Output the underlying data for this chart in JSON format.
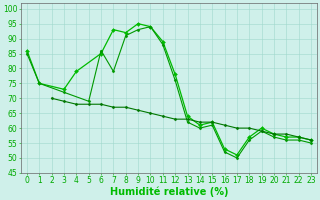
{
  "line1": {
    "x": [
      0,
      1,
      3,
      4,
      6,
      7,
      8,
      9,
      10,
      11,
      12,
      13,
      14,
      15,
      16,
      17,
      18,
      19,
      20,
      21,
      22,
      23
    ],
    "y": [
      86,
      75,
      73,
      79,
      85,
      93,
      92,
      95,
      94,
      89,
      78,
      64,
      61,
      62,
      53,
      51,
      57,
      60,
      58,
      57,
      57,
      56
    ],
    "color": "#00bb00",
    "marker": "D",
    "markersize": 2.0,
    "linewidth": 0.9
  },
  "line2": {
    "x": [
      0,
      1,
      3,
      5,
      6,
      7,
      8,
      9,
      10,
      11,
      12,
      13,
      14,
      15,
      16,
      17,
      18,
      19,
      20,
      21,
      22,
      23
    ],
    "y": [
      85,
      75,
      72,
      69,
      86,
      79,
      91,
      93,
      94,
      88,
      76,
      62,
      60,
      61,
      52,
      50,
      56,
      59,
      57,
      56,
      56,
      55
    ],
    "color": "#009900",
    "marker": "D",
    "markersize": 1.5,
    "linewidth": 0.8
  },
  "line3": {
    "x": [
      2,
      3,
      4,
      5,
      6,
      7,
      8,
      9,
      10,
      11,
      12,
      13,
      14,
      15,
      16,
      17,
      18,
      19,
      20,
      21,
      22,
      23
    ],
    "y": [
      70,
      69,
      68,
      68,
      68,
      67,
      67,
      66,
      65,
      64,
      63,
      63,
      62,
      62,
      61,
      60,
      60,
      59,
      58,
      58,
      57,
      56
    ],
    "color": "#007700",
    "marker": "D",
    "markersize": 1.5,
    "linewidth": 0.8
  },
  "xlabel": "Humidité relative (%)",
  "xlabel_color": "#00bb00",
  "xlabel_fontsize": 7,
  "background_color": "#cff0ea",
  "grid_color": "#a0d8cc",
  "axis_color": "#666666",
  "ylim": [
    45,
    102
  ],
  "xlim": [
    -0.5,
    23.5
  ],
  "yticks": [
    45,
    50,
    55,
    60,
    65,
    70,
    75,
    80,
    85,
    90,
    95,
    100
  ],
  "xticks": [
    0,
    1,
    2,
    3,
    4,
    5,
    6,
    7,
    8,
    9,
    10,
    11,
    12,
    13,
    14,
    15,
    16,
    17,
    18,
    19,
    20,
    21,
    22,
    23
  ],
  "tick_color": "#00aa00",
  "tick_fontsize": 5.5
}
